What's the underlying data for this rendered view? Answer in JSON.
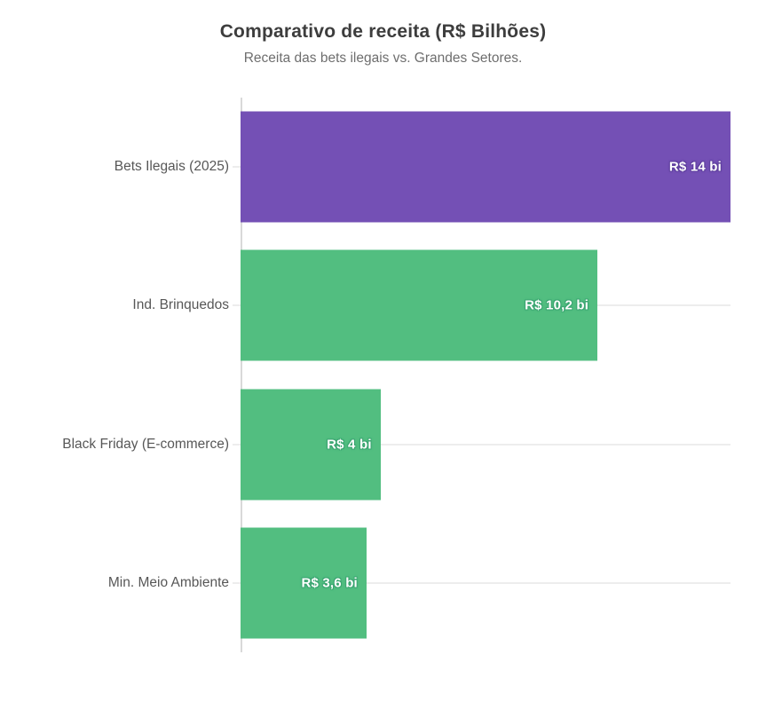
{
  "header": {
    "title": "Comparativo de receita (R$ Bilhões)",
    "subtitle": "Receita das bets ilegais vs. Grandes Setores."
  },
  "colors": {
    "highlight_bar": "#7450b5",
    "default_bar": "#52be80",
    "highlight_outline": "#5e3e9e",
    "default_outline": "#3aa571",
    "axis": "#d9d9d9",
    "gridline": "#ededed",
    "title_text": "#3d3d3d",
    "subtitle_text": "#6e6e6e",
    "category_text": "#575757",
    "value_text": "#ffffff"
  },
  "chart_data": {
    "type": "bar",
    "orientation": "horizontal",
    "title": "Comparativo de receita (R$ Bilhões)",
    "subtitle": "Receita das bets ilegais vs. Grandes Setores.",
    "categories": [
      "Bets Ilegais (2025)",
      "Ind. Brinquedos",
      "Black Friday (E-commerce)",
      "Min. Meio Ambiente"
    ],
    "values": [
      14,
      10.2,
      4,
      3.6
    ],
    "value_labels": [
      "R$ 14 bi",
      "R$ 10,2 bi",
      "R$ 4 bi",
      "R$ 3,6 bi"
    ],
    "bar_colors": [
      "#7450b5",
      "#52be80",
      "#52be80",
      "#52be80"
    ],
    "label_outline_colors": [
      "#5e3e9e",
      "#3aa571",
      "#3aa571",
      "#3aa571"
    ],
    "xlabel": "",
    "ylabel": "",
    "xlim": [
      0,
      14
    ],
    "grid": true,
    "legend": false
  }
}
